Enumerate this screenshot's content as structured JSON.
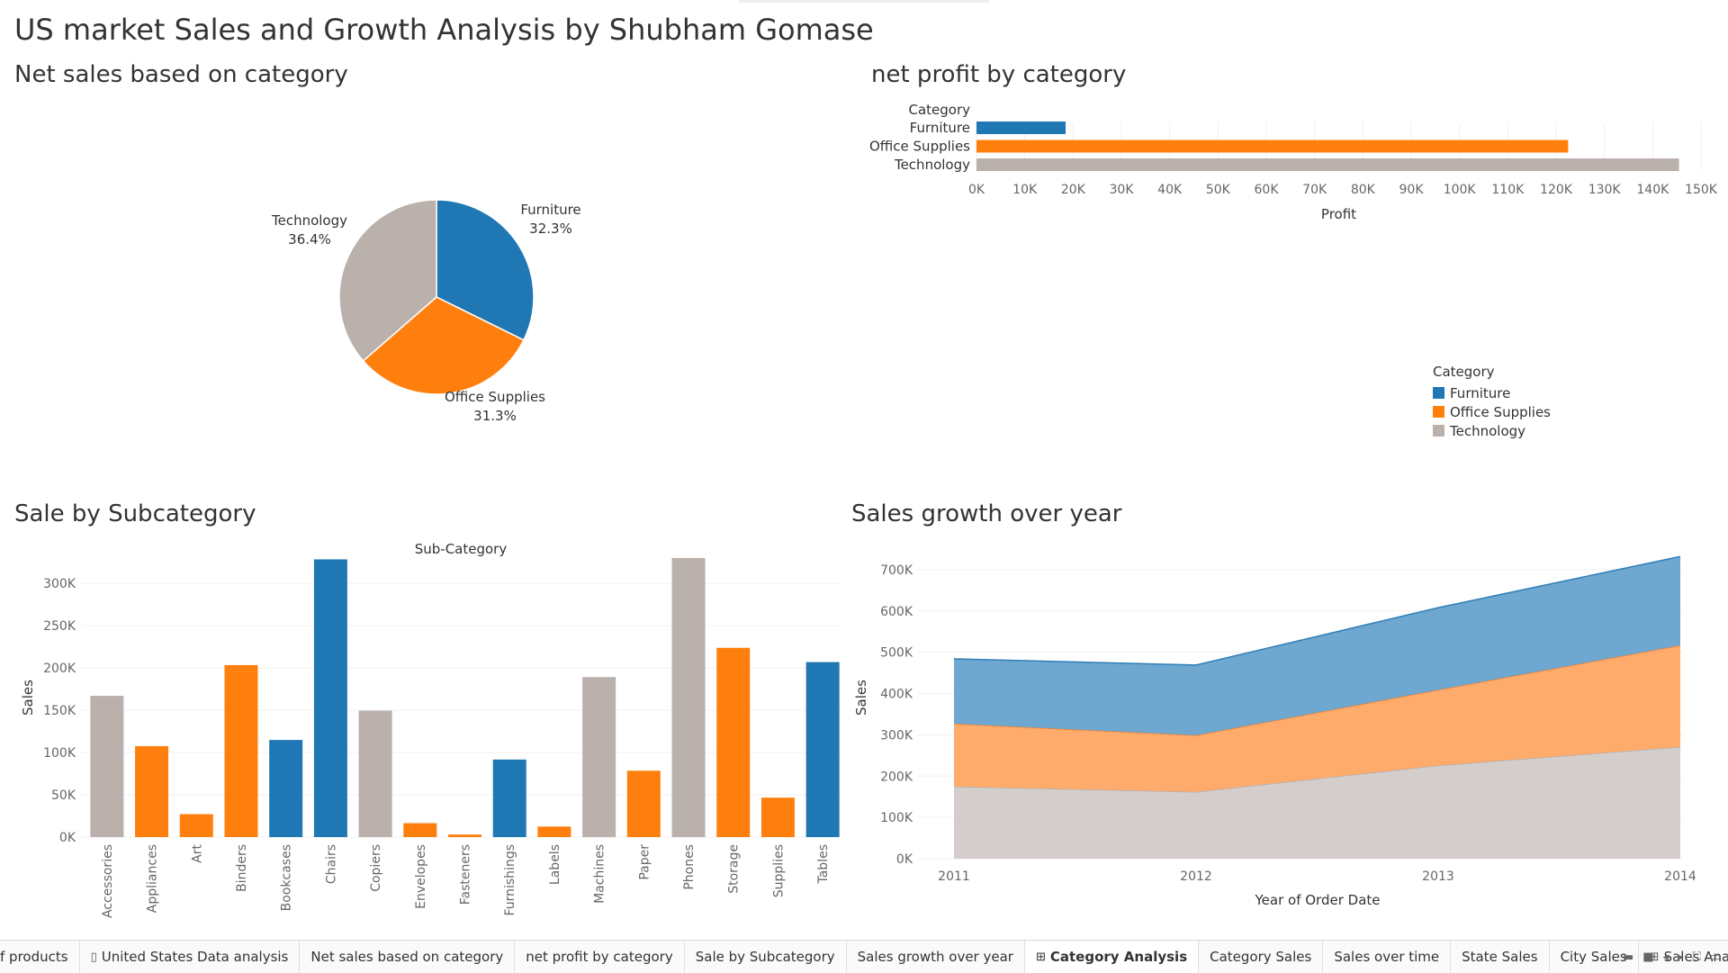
{
  "dashboard_title": "US market Sales and Growth Analysis by Shubham Gomase",
  "colors": {
    "furniture": "#1f77b4",
    "office_supplies": "#ff7f0e",
    "technology": "#bab0ac"
  },
  "pie": {
    "title": "Net sales based on category",
    "labels": [
      {
        "name": "Furniture",
        "pct": "32.3%"
      },
      {
        "name": "Office Supplies",
        "pct": "31.3%"
      },
      {
        "name": "Technology",
        "pct": "36.4%"
      }
    ]
  },
  "profit": {
    "title": "net profit by category",
    "header": "Category",
    "xlabel": "Profit",
    "ticks": [
      "0K",
      "10K",
      "20K",
      "30K",
      "40K",
      "50K",
      "60K",
      "70K",
      "80K",
      "90K",
      "100K",
      "110K",
      "120K",
      "130K",
      "140K",
      "150K"
    ]
  },
  "subcat": {
    "title": "Sale by Subcategory",
    "header": "Sub-Category",
    "ylabel": "Sales",
    "ticks": [
      "0K",
      "50K",
      "100K",
      "150K",
      "200K",
      "250K",
      "300K"
    ]
  },
  "growth": {
    "title": "Sales growth over year",
    "xlabel": "Year of Order Date",
    "ylabel": "Sales",
    "ticks": [
      "0K",
      "100K",
      "200K",
      "300K",
      "400K",
      "500K",
      "600K",
      "700K"
    ]
  },
  "legend": {
    "title": "Category",
    "items": [
      "Furniture",
      "Office Supplies",
      "Technology"
    ]
  },
  "chart_data": [
    {
      "type": "pie",
      "title": "Net sales based on category",
      "categories": [
        "Furniture",
        "Office Supplies",
        "Technology"
      ],
      "values": [
        32.3,
        31.3,
        36.4
      ]
    },
    {
      "type": "bar",
      "orientation": "horizontal",
      "title": "net profit by category",
      "categories": [
        "Furniture",
        "Office Supplies",
        "Technology"
      ],
      "values": [
        18451,
        122491,
        145455
      ],
      "xlabel": "Profit",
      "xlim": [
        0,
        150000
      ]
    },
    {
      "type": "bar",
      "title": "Sale by Subcategory",
      "xlabel": "Sub-Category",
      "ylabel": "Sales",
      "ylim": [
        0,
        330000
      ],
      "categories": [
        "Accessories",
        "Appliances",
        "Art",
        "Binders",
        "Bookcases",
        "Chairs",
        "Copiers",
        "Envelopes",
        "Fasteners",
        "Furnishings",
        "Labels",
        "Machines",
        "Paper",
        "Phones",
        "Storage",
        "Supplies",
        "Tables"
      ],
      "values": [
        167026,
        107532,
        27119,
        203413,
        114880,
        328449,
        149528,
        16476,
        3024,
        91705,
        12486,
        189239,
        78479,
        330007,
        223844,
        46674,
        206966
      ],
      "category_of": [
        "Technology",
        "Office Supplies",
        "Office Supplies",
        "Office Supplies",
        "Furniture",
        "Furniture",
        "Technology",
        "Office Supplies",
        "Office Supplies",
        "Furniture",
        "Office Supplies",
        "Technology",
        "Office Supplies",
        "Technology",
        "Office Supplies",
        "Office Supplies",
        "Furniture"
      ]
    },
    {
      "type": "area",
      "stacked": true,
      "title": "Sales growth over year",
      "xlabel": "Year of Order Date",
      "ylabel": "Sales",
      "ylim": [
        0,
        750000
      ],
      "x": [
        "2011",
        "2012",
        "2013",
        "2014"
      ],
      "series": [
        {
          "name": "Technology",
          "values": [
            175000,
            162000,
            226000,
            271000
          ]
        },
        {
          "name": "Office Supplies",
          "values": [
            152000,
            137000,
            183000,
            246000
          ]
        },
        {
          "name": "Furniture",
          "values": [
            157000,
            170000,
            199000,
            215000
          ]
        }
      ]
    }
  ],
  "tabs": [
    {
      "label": "f products",
      "icon": ""
    },
    {
      "label": "United States Data analysis",
      "icon": "book"
    },
    {
      "label": "Net sales based on category",
      "icon": ""
    },
    {
      "label": "net profit by category",
      "icon": ""
    },
    {
      "label": "Sale by Subcategory",
      "icon": ""
    },
    {
      "label": "Sales growth over year",
      "icon": ""
    },
    {
      "label": "Category Analysis",
      "icon": "grid",
      "active": true
    },
    {
      "label": "Category Sales",
      "icon": ""
    },
    {
      "label": "Sales over time",
      "icon": ""
    },
    {
      "label": "State Sales",
      "icon": ""
    },
    {
      "label": "City Sales",
      "icon": ""
    },
    {
      "label": "Sales Analysis",
      "icon": "grid"
    }
  ]
}
